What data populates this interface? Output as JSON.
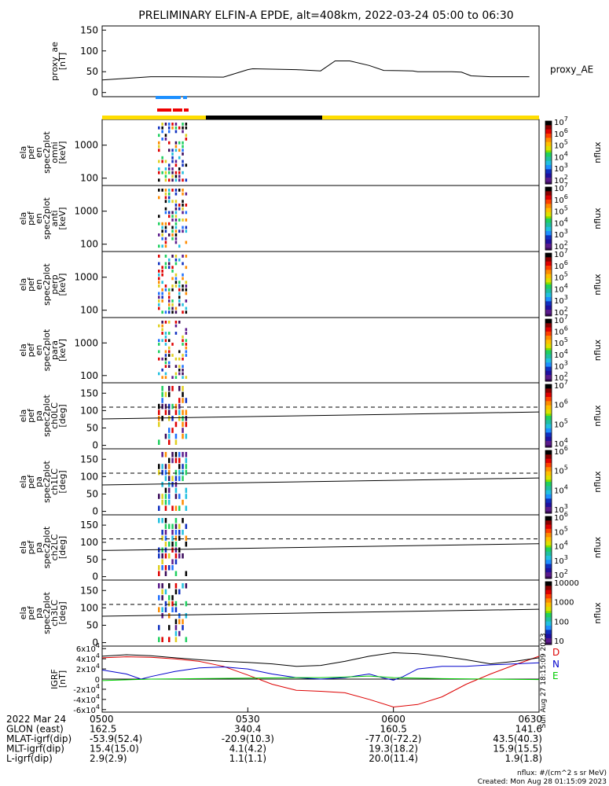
{
  "title": "PRELIMINARY ELFIN-A EPDE, alt=408km, 2022-03-24 05:00 to 06:30",
  "chart_data": [
    {
      "type": "line",
      "panel": "proxy_ae",
      "ylabel": [
        "proxy_ae",
        "[nT]"
      ],
      "legend": "proxy_AE",
      "yticks": [
        "0",
        "50",
        "100",
        "150"
      ],
      "ylim": [
        -10,
        160
      ],
      "x_minutes": [
        0,
        10,
        15,
        25,
        30,
        31,
        40,
        45,
        48,
        51,
        55,
        58,
        64,
        65,
        67,
        72,
        74,
        76,
        80,
        88
      ],
      "values": [
        30,
        38,
        38,
        37,
        55,
        57,
        55,
        52,
        76,
        76,
        65,
        53,
        52,
        50,
        50,
        50,
        49,
        40,
        38,
        38
      ],
      "line_color": "#000000"
    },
    {
      "type": "heatmap",
      "panel": "spec_omni",
      "ylabel": [
        "ela",
        "pef",
        "en",
        "spec2plot",
        "omni",
        "[keV]"
      ],
      "yticks": [
        "100",
        "1000"
      ],
      "colorbar": {
        "label": "nflux",
        "ticks": [
          "10^2",
          "10^3",
          "10^4",
          "10^5",
          "10^6",
          "10^7"
        ]
      }
    },
    {
      "type": "heatmap",
      "panel": "spec_anti",
      "ylabel": [
        "ela",
        "pef",
        "en",
        "spec2plot",
        "anti",
        "[keV]"
      ],
      "yticks": [
        "100",
        "1000"
      ],
      "colorbar": {
        "label": "nflux",
        "ticks": [
          "10^2",
          "10^3",
          "10^4",
          "10^5",
          "10^6",
          "10^7"
        ]
      }
    },
    {
      "type": "heatmap",
      "panel": "spec_perp",
      "ylabel": [
        "ela",
        "pef",
        "en",
        "spec2plot",
        "perp",
        "[keV]"
      ],
      "yticks": [
        "100",
        "1000"
      ],
      "colorbar": {
        "label": "nflux",
        "ticks": [
          "10^2",
          "10^3",
          "10^4",
          "10^5",
          "10^6",
          "10^7"
        ]
      }
    },
    {
      "type": "heatmap",
      "panel": "spec_para",
      "ylabel": [
        "ela",
        "pef",
        "en",
        "spec2plot",
        "para",
        "[keV]"
      ],
      "yticks": [
        "100",
        "1000"
      ],
      "colorbar": {
        "label": "nflux",
        "ticks": [
          "10^2",
          "10^3",
          "10^4",
          "10^5",
          "10^6",
          "10^7"
        ]
      }
    },
    {
      "type": "heatmap",
      "panel": "pa_ch0",
      "ylabel": [
        "ela",
        "pef",
        "pa",
        "spec2plot",
        "ch0LC",
        "[deg]"
      ],
      "yticks": [
        "0",
        "50",
        "100",
        "150"
      ],
      "ylim": [
        -10,
        180
      ],
      "solid_line": [
        76,
        96
      ],
      "dashed_line": [
        110,
        110
      ],
      "colorbar": {
        "label": "nflux",
        "ticks": [
          "10^4",
          "10^5",
          "10^6",
          "10^7"
        ]
      }
    },
    {
      "type": "heatmap",
      "panel": "pa_ch1",
      "ylabel": [
        "ela",
        "pef",
        "pa",
        "spec2plot",
        "ch1LC",
        "[deg]"
      ],
      "yticks": [
        "0",
        "50",
        "100",
        "150"
      ],
      "ylim": [
        -10,
        180
      ],
      "solid_line": [
        76,
        96
      ],
      "dashed_line": [
        110,
        110
      ],
      "colorbar": {
        "label": "nflux",
        "ticks": [
          "10^3",
          "10^4",
          "10^5",
          "10^6"
        ]
      }
    },
    {
      "type": "heatmap",
      "panel": "pa_ch2",
      "ylabel": [
        "ela",
        "pef",
        "pa",
        "spec2plot",
        "ch2LC",
        "[deg]"
      ],
      "yticks": [
        "0",
        "50",
        "100",
        "150"
      ],
      "ylim": [
        -10,
        180
      ],
      "solid_line": [
        76,
        96
      ],
      "dashed_line": [
        110,
        110
      ],
      "colorbar": {
        "label": "nflux",
        "ticks": [
          "10^2",
          "10^3",
          "10^4",
          "10^5",
          "10^6"
        ]
      }
    },
    {
      "type": "heatmap",
      "panel": "pa_ch3",
      "ylabel": [
        "ela",
        "pef",
        "pa",
        "spec2plot",
        "ch3LC",
        "[deg]"
      ],
      "yticks": [
        "0",
        "50",
        "100",
        "150"
      ],
      "ylim": [
        -10,
        180
      ],
      "solid_line": [
        76,
        96
      ],
      "dashed_line": [
        110,
        110
      ],
      "colorbar": {
        "label": "nflux",
        "ticks": [
          "10",
          "100",
          "1000",
          "10000"
        ]
      }
    },
    {
      "type": "line",
      "panel": "igrf",
      "ylabel": [
        "IGRF",
        "[nT]"
      ],
      "yticks": [
        "-6x10^4",
        "-4x10^4",
        "-2x10^4",
        "0",
        "2x10^4",
        "4x10^4",
        "6x10^4"
      ],
      "ylim": [
        -65000,
        65000
      ],
      "legend": [
        "D",
        "N",
        "E"
      ],
      "side_text": "Sun Aug 27 18:15:09 2023",
      "series": [
        {
          "name": "D",
          "color": "#dd0000",
          "x_minutes": [
            0,
            5,
            10,
            15,
            20,
            25,
            30,
            35,
            40,
            45,
            50,
            55,
            60,
            65,
            70,
            75,
            80,
            85,
            90
          ],
          "values": [
            42000,
            44000,
            43000,
            40000,
            35000,
            25000,
            8000,
            -10000,
            -22000,
            -24000,
            -27000,
            -40000,
            -55000,
            -50000,
            -35000,
            -10000,
            10000,
            28000,
            45000
          ]
        },
        {
          "name": "N",
          "color": "#0000cc",
          "x_minutes": [
            0,
            5,
            8,
            10,
            15,
            20,
            25,
            30,
            35,
            40,
            45,
            50,
            55,
            58,
            60,
            62,
            65,
            70,
            75,
            80,
            85,
            90
          ],
          "values": [
            18000,
            10000,
            0,
            5000,
            15000,
            22000,
            24000,
            20000,
            10000,
            3000,
            0,
            3000,
            10000,
            2000,
            -2000,
            5000,
            20000,
            25000,
            25000,
            28000,
            30000,
            32000
          ]
        },
        {
          "name": "E",
          "color": "#00cc00",
          "x_minutes": [
            0,
            10,
            20,
            30,
            40,
            45,
            50,
            55,
            60,
            65,
            70,
            80,
            90
          ],
          "values": [
            -3000,
            0,
            1000,
            2000,
            3000,
            3000,
            4000,
            6000,
            3000,
            2000,
            1000,
            0,
            -1000
          ]
        },
        {
          "name": "total",
          "color": "#000000",
          "x_minutes": [
            0,
            5,
            10,
            15,
            20,
            25,
            30,
            35,
            40,
            45,
            50,
            55,
            60,
            65,
            70,
            75,
            80,
            85,
            90
          ],
          "values": [
            45000,
            48000,
            46000,
            42000,
            38000,
            35000,
            33000,
            30000,
            25000,
            27000,
            35000,
            45000,
            52000,
            50000,
            45000,
            38000,
            30000,
            35000,
            42000
          ]
        }
      ]
    }
  ],
  "time_axis": {
    "ticks": [
      "0500",
      "0530",
      "0600",
      "0630"
    ],
    "rows": [
      {
        "label": "2022 Mar 24",
        "values": [
          "0500",
          "0530",
          "0600",
          "0630"
        ]
      },
      {
        "label": "GLON (east)",
        "values": [
          "162.5",
          "340.4",
          "160.5",
          "141.6"
        ]
      },
      {
        "label": "MLAT-igrf(dip)",
        "values": "-53.9(52.4)|-20.9(10.3)|-77.0(-72.2)|43.5(40.3)"
      },
      {
        "label": "MLT-igrf(dip)",
        "values": "15.4(15.0)|4.1(4.2)|19.3(18.2)|15.9(15.5)"
      },
      {
        "label": "L-igrf(dip)",
        "values": "2.9(2.9)|1.1(1.1)|20.0(11.4)|1.9(1.8)"
      }
    ]
  },
  "footer": {
    "units": "nflux: #/(cm^2 s sr MeV)",
    "created": "Created: Mon Aug 28 01:15:09 2023"
  },
  "colors": {
    "sunlight": "#ffdd00",
    "eclipse": "#000000",
    "science_blue": "#1e90ff",
    "science_red": "#ee0000"
  }
}
